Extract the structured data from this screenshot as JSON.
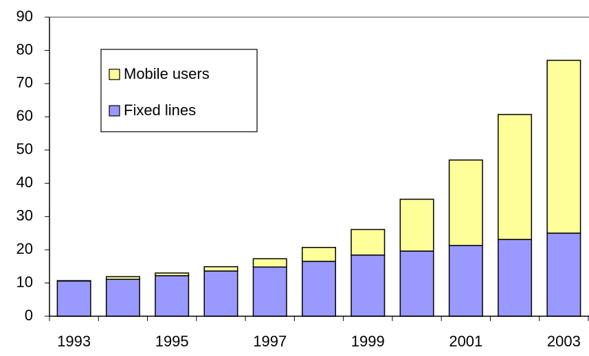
{
  "chart_data": {
    "type": "stacked_bar",
    "categories": [
      "1993",
      null,
      "1995",
      null,
      "1997",
      null,
      "1999",
      null,
      "2001",
      null,
      "2003"
    ],
    "series": [
      {
        "name": "Fixed lines",
        "color": "#9999ff",
        "values": [
          10.6,
          11.1,
          12.2,
          13.6,
          14.8,
          16.5,
          18.4,
          19.6,
          21.3,
          23.1,
          25.0
        ]
      },
      {
        "name": "Mobile users",
        "color": "#ffff99",
        "values": [
          0.1,
          0.8,
          0.8,
          1.3,
          2.5,
          4.2,
          7.7,
          15.6,
          25.7,
          37.6,
          52.0
        ]
      }
    ],
    "ylim": [
      0,
      90
    ],
    "yticks": [
      0,
      10,
      20,
      30,
      40,
      50,
      60,
      70,
      80,
      90
    ],
    "legend": "top-left"
  }
}
